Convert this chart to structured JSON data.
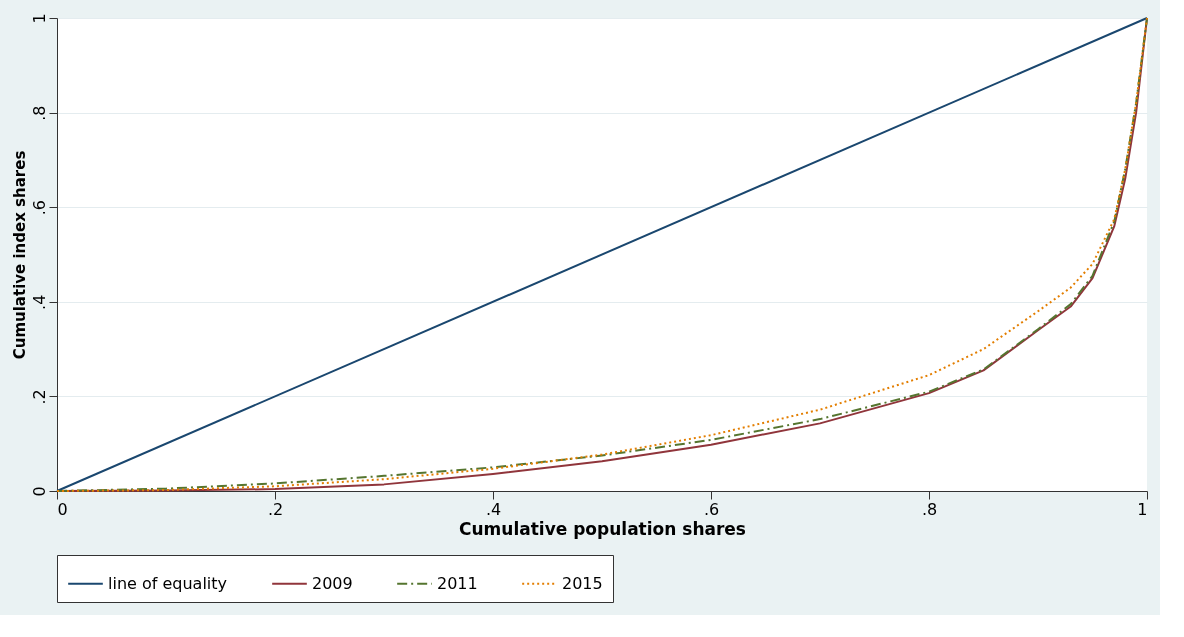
{
  "chart_data": {
    "type": "line",
    "xlabel": "Cumulative population shares",
    "ylabel": "Cumulative index shares",
    "xlim": [
      0,
      1
    ],
    "ylim": [
      0,
      1
    ],
    "xticks": [
      0,
      {
        "value": 0.2,
        "label": ".2"
      },
      {
        "value": 0.4,
        "label": ".4"
      },
      {
        "value": 0.6,
        "label": ".6"
      },
      {
        "value": 0.8,
        "label": ".8"
      },
      1
    ],
    "yticks": [
      0,
      {
        "value": 0.2,
        "label": ".2"
      },
      {
        "value": 0.4,
        "label": ".4"
      },
      {
        "value": 0.6,
        "label": ".6"
      },
      {
        "value": 0.8,
        "label": ".8"
      },
      1
    ],
    "grid": "y",
    "legend": "bottom",
    "series": [
      {
        "name": "line of equality",
        "color": "#1a476f",
        "line_style": "solid",
        "x": [
          0,
          1
        ],
        "values": [
          0,
          1
        ]
      },
      {
        "name": "2009",
        "color": "#90353b",
        "line_style": "solid",
        "x": [
          0,
          0.1,
          0.2,
          0.3,
          0.4,
          0.5,
          0.6,
          0.7,
          0.8,
          0.85,
          0.9,
          0.93,
          0.95,
          0.97,
          0.98,
          0.99,
          1
        ],
        "values": [
          0,
          0.001,
          0.004,
          0.014,
          0.036,
          0.063,
          0.098,
          0.143,
          0.207,
          0.255,
          0.34,
          0.39,
          0.45,
          0.56,
          0.66,
          0.8,
          1
        ]
      },
      {
        "name": "2011",
        "color": "#55752f",
        "line_style": "dashdot",
        "x": [
          0,
          0.1,
          0.2,
          0.3,
          0.4,
          0.5,
          0.6,
          0.7,
          0.8,
          0.85,
          0.9,
          0.93,
          0.95,
          0.97,
          0.98,
          0.99,
          1
        ],
        "values": [
          0,
          0.005,
          0.016,
          0.032,
          0.05,
          0.075,
          0.108,
          0.152,
          0.21,
          0.257,
          0.342,
          0.395,
          0.455,
          0.57,
          0.68,
          0.82,
          1
        ]
      },
      {
        "name": "2015",
        "color": "#e37e00",
        "line_style": "dotted",
        "x": [
          0,
          0.1,
          0.2,
          0.3,
          0.4,
          0.5,
          0.6,
          0.7,
          0.8,
          0.85,
          0.9,
          0.93,
          0.95,
          0.97,
          0.98,
          0.99,
          1
        ],
        "values": [
          0,
          0.002,
          0.01,
          0.025,
          0.047,
          0.077,
          0.118,
          0.172,
          0.245,
          0.3,
          0.38,
          0.43,
          0.48,
          0.575,
          0.68,
          0.82,
          1
        ]
      }
    ]
  }
}
